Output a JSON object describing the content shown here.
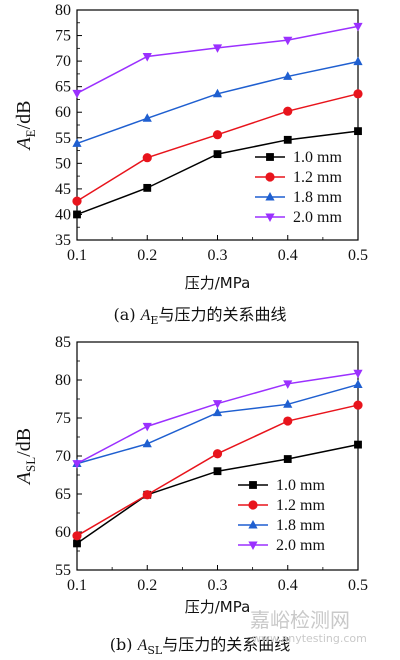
{
  "chart_data": [
    {
      "type": "line",
      "panel": "a",
      "x": [
        0.1,
        0.2,
        0.3,
        0.4,
        0.5
      ],
      "xlabel": "压力/MPa",
      "ylabel": {
        "main": "A",
        "sub": "E",
        "rest": "/dB"
      },
      "xlim": [
        0.1,
        0.5
      ],
      "ylim": [
        35,
        80
      ],
      "xticks": [
        "0.1",
        "0.2",
        "0.3",
        "0.4",
        "0.5"
      ],
      "yticks": [
        "35",
        "40",
        "45",
        "50",
        "55",
        "60",
        "65",
        "70",
        "75",
        "80"
      ],
      "grid": false,
      "legend": "bottom-right",
      "series": [
        {
          "name": "1.0 mm",
          "color": "#000000",
          "marker": "square",
          "values": [
            40.0,
            45.2,
            51.8,
            54.6,
            56.3
          ]
        },
        {
          "name": "1.2 mm",
          "color": "#e8141c",
          "marker": "circle",
          "values": [
            42.6,
            51.1,
            55.6,
            60.2,
            63.6
          ]
        },
        {
          "name": "1.8 mm",
          "color": "#1f5fd0",
          "marker": "triangle-up",
          "values": [
            53.9,
            58.8,
            63.6,
            67.0,
            69.9
          ]
        },
        {
          "name": "2.0 mm",
          "color": "#9b30ff",
          "marker": "triangle-down",
          "values": [
            63.7,
            70.9,
            72.6,
            74.1,
            76.8
          ]
        }
      ],
      "caption": {
        "prefix": "(a) ",
        "main": "A",
        "sub": "E",
        "rest": "与压力的关系曲线"
      }
    },
    {
      "type": "line",
      "panel": "b",
      "x": [
        0.1,
        0.2,
        0.3,
        0.4,
        0.5
      ],
      "xlabel": "压力/MPa",
      "ylabel": {
        "main": "A",
        "sub": "SL",
        "rest": "/dB"
      },
      "xlim": [
        0.1,
        0.5
      ],
      "ylim": [
        55,
        85
      ],
      "xticks": [
        "0.1",
        "0.2",
        "0.3",
        "0.4",
        "0.5"
      ],
      "yticks": [
        "55",
        "60",
        "65",
        "70",
        "75",
        "80",
        "85"
      ],
      "grid": false,
      "legend": "bottom-right",
      "series": [
        {
          "name": "1.0 mm",
          "color": "#000000",
          "marker": "square",
          "values": [
            58.5,
            64.9,
            68.0,
            69.6,
            71.5
          ]
        },
        {
          "name": "1.2 mm",
          "color": "#e8141c",
          "marker": "circle",
          "values": [
            59.5,
            64.9,
            70.3,
            74.6,
            76.7
          ]
        },
        {
          "name": "1.8 mm",
          "color": "#1f5fd0",
          "marker": "triangle-up",
          "values": [
            69.0,
            71.6,
            75.7,
            76.8,
            79.4
          ]
        },
        {
          "name": "2.0 mm",
          "color": "#9b30ff",
          "marker": "triangle-down",
          "values": [
            69.0,
            73.9,
            76.9,
            79.5,
            80.9
          ]
        }
      ],
      "caption": {
        "prefix": "(b) ",
        "main": "A",
        "sub": "SL",
        "rest": "与压力的关系曲线"
      }
    }
  ],
  "watermark": {
    "main": "嘉峪检测网",
    "url": "www.anytesting.com"
  }
}
